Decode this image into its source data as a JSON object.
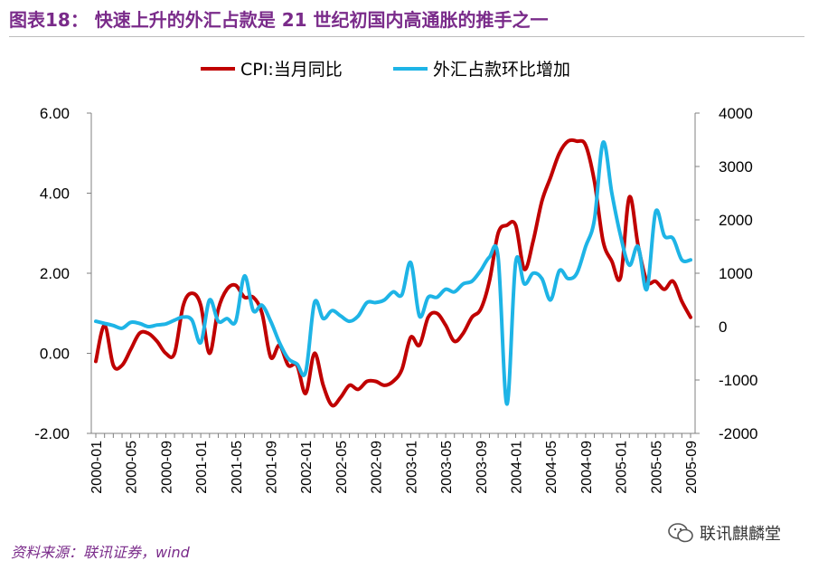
{
  "header": {
    "title": "图表18：    快速上升的外汇占款是 21 世纪初国内高通胀的推手之一"
  },
  "footer": {
    "source": "资料来源：联讯证券，wind",
    "watermark": "联讯麒麟堂"
  },
  "chart_data": {
    "type": "line",
    "title": "",
    "legend_position": "top-center",
    "colors": {
      "cpi": "#c00000",
      "fx": "#1eb4e6",
      "axis": "#808080",
      "text": "#000000"
    },
    "left_axis": {
      "min": -2,
      "max": 6,
      "ticks": [
        "-2.00",
        "0.00",
        "2.00",
        "4.00",
        "6.00"
      ]
    },
    "right_axis": {
      "min": -2000,
      "max": 4000,
      "ticks": [
        "-2000",
        "-1000",
        "0",
        "1000",
        "2000",
        "3000",
        "4000"
      ]
    },
    "x_tick_labels": [
      "2000-01",
      "2000-05",
      "2000-09",
      "2001-01",
      "2001-05",
      "2001-09",
      "2002-01",
      "2002-05",
      "2002-09",
      "2003-01",
      "2003-05",
      "2003-09",
      "2004-01",
      "2004-05",
      "2004-09",
      "2005-01",
      "2005-05",
      "2005-09"
    ],
    "months": 69,
    "series": [
      {
        "name": "CPI:当月同比",
        "axis": "left",
        "color": "#c00000",
        "points": [
          [
            0,
            -0.2
          ],
          [
            1,
            0.7
          ],
          [
            2,
            -0.3
          ],
          [
            3,
            -0.3
          ],
          [
            4,
            0.1
          ],
          [
            5,
            0.5
          ],
          [
            6,
            0.5
          ],
          [
            7,
            0.3
          ],
          [
            8,
            0
          ],
          [
            9,
            0
          ],
          [
            10,
            1.2
          ],
          [
            11,
            1.5
          ],
          [
            12,
            1.2
          ],
          [
            13,
            0
          ],
          [
            14,
            1.1
          ],
          [
            15,
            1.6
          ],
          [
            16,
            1.7
          ],
          [
            17,
            1.4
          ],
          [
            18,
            1.4
          ],
          [
            19,
            1.0
          ],
          [
            20,
            -0.1
          ],
          [
            21,
            0.2
          ],
          [
            22,
            -0.3
          ],
          [
            23,
            -0.3
          ],
          [
            24,
            -1.0
          ],
          [
            25,
            0.0
          ],
          [
            26,
            -0.8
          ],
          [
            27,
            -1.3
          ],
          [
            28,
            -1.1
          ],
          [
            29,
            -0.8
          ],
          [
            30,
            -0.9
          ],
          [
            31,
            -0.7
          ],
          [
            32,
            -0.7
          ],
          [
            33,
            -0.8
          ],
          [
            34,
            -0.7
          ],
          [
            35,
            -0.4
          ],
          [
            36,
            0.4
          ],
          [
            37,
            0.2
          ],
          [
            38,
            0.9
          ],
          [
            39,
            1.0
          ],
          [
            40,
            0.7
          ],
          [
            41,
            0.3
          ],
          [
            42,
            0.5
          ],
          [
            43,
            0.9
          ],
          [
            44,
            1.1
          ],
          [
            45,
            1.8
          ],
          [
            46,
            3.0
          ],
          [
            47,
            3.2
          ],
          [
            48,
            3.2
          ],
          [
            49,
            2.1
          ],
          [
            50,
            2.8
          ],
          [
            51,
            3.8
          ],
          [
            52,
            4.4
          ],
          [
            53,
            5.0
          ],
          [
            54,
            5.3
          ],
          [
            55,
            5.3
          ],
          [
            56,
            5.2
          ],
          [
            57,
            4.3
          ],
          [
            58,
            2.8
          ],
          [
            59,
            2.3
          ],
          [
            60,
            1.9
          ],
          [
            61,
            3.9
          ],
          [
            62,
            2.7
          ],
          [
            63,
            1.8
          ],
          [
            64,
            1.8
          ],
          [
            65,
            1.6
          ],
          [
            66,
            1.8
          ],
          [
            67,
            1.3
          ],
          [
            68,
            0.9
          ]
        ]
      },
      {
        "name": "外汇占款环比增加",
        "axis": "right",
        "color": "#1eb4e6",
        "points": [
          [
            0,
            100
          ],
          [
            1,
            60
          ],
          [
            2,
            20
          ],
          [
            3,
            -30
          ],
          [
            4,
            80
          ],
          [
            5,
            60
          ],
          [
            6,
            0
          ],
          [
            7,
            30
          ],
          [
            8,
            50
          ],
          [
            9,
            120
          ],
          [
            10,
            180
          ],
          [
            11,
            120
          ],
          [
            12,
            -300
          ],
          [
            13,
            500
          ],
          [
            14,
            100
          ],
          [
            15,
            150
          ],
          [
            16,
            100
          ],
          [
            17,
            950
          ],
          [
            18,
            300
          ],
          [
            19,
            400
          ],
          [
            20,
            100
          ],
          [
            21,
            -300
          ],
          [
            22,
            -600
          ],
          [
            23,
            -700
          ],
          [
            24,
            -850
          ],
          [
            25,
            450
          ],
          [
            26,
            150
          ],
          [
            27,
            300
          ],
          [
            28,
            200
          ],
          [
            29,
            100
          ],
          [
            30,
            200
          ],
          [
            31,
            450
          ],
          [
            32,
            450
          ],
          [
            33,
            500
          ],
          [
            34,
            650
          ],
          [
            35,
            600
          ],
          [
            36,
            1200
          ],
          [
            37,
            200
          ],
          [
            38,
            550
          ],
          [
            39,
            550
          ],
          [
            40,
            700
          ],
          [
            41,
            650
          ],
          [
            42,
            800
          ],
          [
            43,
            850
          ],
          [
            44,
            1050
          ],
          [
            45,
            1300
          ],
          [
            46,
            1300
          ],
          [
            47,
            -1450
          ],
          [
            48,
            1200
          ],
          [
            49,
            800
          ],
          [
            50,
            1000
          ],
          [
            51,
            900
          ],
          [
            52,
            500
          ],
          [
            53,
            1050
          ],
          [
            54,
            900
          ],
          [
            55,
            1000
          ],
          [
            56,
            1500
          ],
          [
            57,
            2000
          ],
          [
            58,
            3450
          ],
          [
            59,
            2500
          ],
          [
            60,
            1700
          ],
          [
            61,
            1150
          ],
          [
            62,
            1500
          ],
          [
            63,
            700
          ],
          [
            64,
            2150
          ],
          [
            65,
            1700
          ],
          [
            66,
            1650
          ],
          [
            67,
            1250
          ],
          [
            68,
            1250
          ]
        ]
      }
    ]
  }
}
